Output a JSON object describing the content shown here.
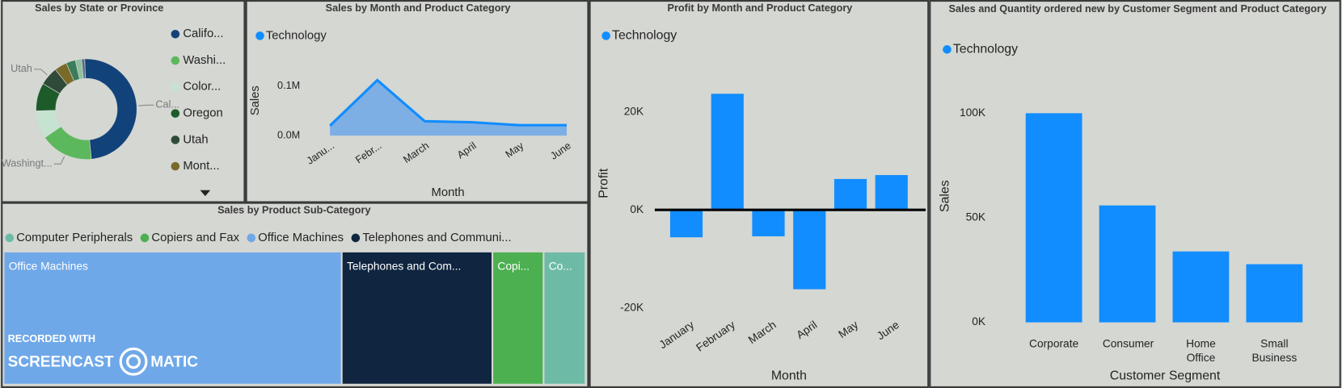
{
  "chart_data": [
    {
      "type": "donut",
      "title": "Sales by State or Province",
      "categories": [
        "Califo...",
        "Washi...",
        "Color...",
        "Oregon",
        "Utah",
        "Mont...",
        null,
        null,
        null
      ],
      "values": [
        49,
        17,
        9,
        9,
        6,
        4,
        3,
        2,
        1
      ],
      "colors": [
        "#12427a",
        "#5cb85c",
        "#c6e3d1",
        "#1e5b2a",
        "#2f4a38",
        "#7a6a2a",
        "#3a7d5a",
        "#8fbfa0",
        "#5a6d8a"
      ],
      "data_labels": [
        "Cal...",
        "Washingt...",
        null,
        null,
        "Utah",
        null,
        null,
        null,
        null
      ]
    },
    {
      "type": "area",
      "title": "Sales by Month and Product Category",
      "x_label": "Month",
      "y_label": "Sales",
      "categories": [
        "Janu...",
        "Febr...",
        "March",
        "April",
        "May",
        "June"
      ],
      "series": [
        {
          "name": "Technology",
          "color": "#118dff",
          "values": [
            0.02,
            0.112,
            0.029,
            0.027,
            0.021,
            0.021
          ]
        }
      ],
      "ylim": [
        0,
        0.13
      ],
      "yticks": [
        {
          "value": 0,
          "label": "0.0M"
        },
        {
          "value": 0.1,
          "label": "0.1M"
        }
      ]
    },
    {
      "type": "bar",
      "title": "Profit by Month and Product Category",
      "x_label": "Month",
      "y_label": "Profit",
      "categories": [
        "January",
        "February",
        "March",
        "April",
        "May",
        "June"
      ],
      "series": [
        {
          "name": "Technology",
          "color": "#118dff",
          "values": [
            -5600,
            23700,
            -5400,
            -16200,
            6300,
            7100
          ]
        }
      ],
      "ylim": [
        -22000,
        27000
      ],
      "yticks": [
        {
          "value": -20000,
          "label": "-20K"
        },
        {
          "value": 0,
          "label": "0K"
        },
        {
          "value": 20000,
          "label": "20K"
        }
      ]
    },
    {
      "type": "bar",
      "title": "Sales and Quantity ordered new by Customer Segment and Product Category",
      "x_label": "Customer Segment",
      "y_label": "Sales",
      "categories": [
        "Corporate",
        "Consumer",
        "Home Office",
        "Small Business"
      ],
      "series": [
        {
          "name": "Technology",
          "color": "#118dff",
          "values": [
            100000,
            55900,
            33900,
            27800
          ]
        }
      ],
      "ylim": [
        0,
        115000
      ],
      "yticks": [
        {
          "value": 0,
          "label": "0K"
        },
        {
          "value": 50000,
          "label": "50K"
        },
        {
          "value": 100000,
          "label": "100K"
        }
      ]
    },
    {
      "type": "treemap",
      "title": "Sales by Product Sub-Category",
      "categories": [
        "Computer Peripherals",
        "Copiers and Fax",
        "Office Machines",
        "Telephones and Communi..."
      ],
      "colors": [
        "#6dbba6",
        "#4caf50",
        "#6fa8e8",
        "#0f2540"
      ],
      "values": [
        7.0,
        8.6,
        58.5,
        25.9
      ],
      "tile_labels": [
        "Co...",
        "Copi...",
        "Office Machines",
        "Telephones and Com..."
      ]
    }
  ],
  "watermark": {
    "line1": "RECORDED WITH",
    "line2": "SCREENCAST",
    "line3": "MATIC"
  }
}
